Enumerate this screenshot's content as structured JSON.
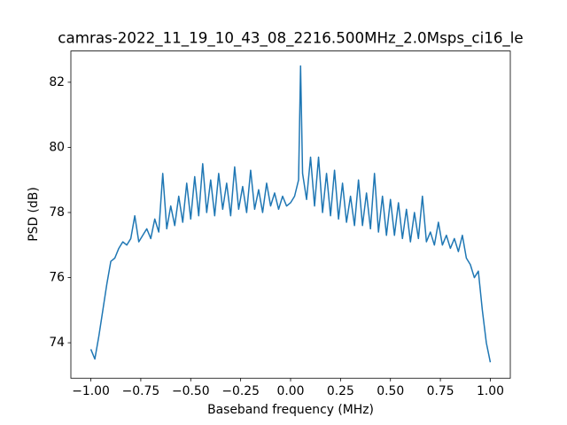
{
  "chart_data": {
    "type": "line",
    "title": "camras-2022_11_19_10_43_08_2216.500MHz_2.0Msps_ci16_le",
    "x_label": "Baseband frequency (MHz)",
    "y_label": "PSD (dB)",
    "x": [
      -1.0,
      -0.98,
      -0.96,
      -0.94,
      -0.92,
      -0.9,
      -0.88,
      -0.86,
      -0.84,
      -0.82,
      -0.8,
      -0.78,
      -0.76,
      -0.74,
      -0.72,
      -0.7,
      -0.68,
      -0.66,
      -0.64,
      -0.62,
      -0.6,
      -0.58,
      -0.56,
      -0.54,
      -0.52,
      -0.5,
      -0.48,
      -0.46,
      -0.44,
      -0.42,
      -0.4,
      -0.38,
      -0.36,
      -0.34,
      -0.32,
      -0.3,
      -0.28,
      -0.26,
      -0.24,
      -0.22,
      -0.2,
      -0.18,
      -0.16,
      -0.14,
      -0.12,
      -0.1,
      -0.08,
      -0.06,
      -0.04,
      -0.02,
      0.0,
      0.02,
      0.04,
      0.05,
      0.06,
      0.08,
      0.1,
      0.12,
      0.14,
      0.16,
      0.18,
      0.2,
      0.22,
      0.24,
      0.26,
      0.28,
      0.3,
      0.32,
      0.34,
      0.36,
      0.38,
      0.4,
      0.42,
      0.44,
      0.46,
      0.48,
      0.5,
      0.52,
      0.54,
      0.56,
      0.58,
      0.6,
      0.62,
      0.64,
      0.66,
      0.68,
      0.7,
      0.72,
      0.74,
      0.76,
      0.78,
      0.8,
      0.82,
      0.84,
      0.86,
      0.88,
      0.9,
      0.92,
      0.94,
      0.96,
      0.98,
      1.0
    ],
    "series": [
      {
        "name": "PSD",
        "color": "#1f77b4",
        "values": [
          73.8,
          73.5,
          74.2,
          75.0,
          75.8,
          76.5,
          76.6,
          76.9,
          77.1,
          77.0,
          77.2,
          77.9,
          77.1,
          77.3,
          77.5,
          77.2,
          77.8,
          77.4,
          79.2,
          77.5,
          78.2,
          77.6,
          78.5,
          77.7,
          78.9,
          77.8,
          79.1,
          77.9,
          79.5,
          78.0,
          79.0,
          77.9,
          79.2,
          78.1,
          78.9,
          77.9,
          79.4,
          78.1,
          78.8,
          78.0,
          79.3,
          78.1,
          78.7,
          78.0,
          78.9,
          78.2,
          78.6,
          78.1,
          78.5,
          78.2,
          78.3,
          78.5,
          79.0,
          82.5,
          79.2,
          78.4,
          79.7,
          78.2,
          79.7,
          78.0,
          79.2,
          77.9,
          79.3,
          77.8,
          78.9,
          77.7,
          78.5,
          77.6,
          79.0,
          77.6,
          78.6,
          77.5,
          79.2,
          77.4,
          78.5,
          77.3,
          78.4,
          77.3,
          78.3,
          77.2,
          78.1,
          77.1,
          78.0,
          77.2,
          78.5,
          77.1,
          77.4,
          77.0,
          77.7,
          77.0,
          77.3,
          76.9,
          77.2,
          76.8,
          77.3,
          76.6,
          76.4,
          76.0,
          76.2,
          75.0,
          74.0,
          73.4
        ]
      }
    ],
    "xlim": [
      -1.1,
      1.1
    ],
    "ylim": [
      72.91,
      82.96
    ],
    "xticks": [
      {
        "value": -1.0,
        "label": "−1.00"
      },
      {
        "value": -0.75,
        "label": "−0.75"
      },
      {
        "value": -0.5,
        "label": "−0.50"
      },
      {
        "value": -0.25,
        "label": "−0.25"
      },
      {
        "value": 0.0,
        "label": "0.00"
      },
      {
        "value": 0.25,
        "label": "0.25"
      },
      {
        "value": 0.5,
        "label": "0.50"
      },
      {
        "value": 0.75,
        "label": "0.75"
      },
      {
        "value": 1.0,
        "label": "1.00"
      }
    ],
    "yticks": [
      74,
      76,
      78,
      80,
      82
    ],
    "grid": false
  }
}
